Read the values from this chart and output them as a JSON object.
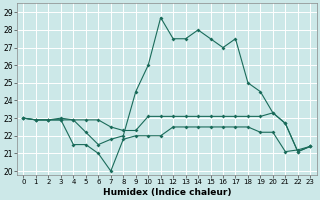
{
  "xlabel": "Humidex (Indice chaleur)",
  "bg_color": "#cce8e8",
  "line_color": "#1a6b5a",
  "grid_color": "#ffffff",
  "xlim": [
    -0.5,
    23.5
  ],
  "ylim": [
    19.8,
    29.5
  ],
  "yticks": [
    20,
    21,
    22,
    23,
    24,
    25,
    26,
    27,
    28,
    29
  ],
  "xticks": [
    0,
    1,
    2,
    3,
    4,
    5,
    6,
    7,
    8,
    9,
    10,
    11,
    12,
    13,
    14,
    15,
    16,
    17,
    18,
    19,
    20,
    21,
    22,
    23
  ],
  "series": [
    [
      23.0,
      22.9,
      22.9,
      22.9,
      21.5,
      21.5,
      21.0,
      20.0,
      21.8,
      22.0,
      22.0,
      22.0,
      22.5,
      22.5,
      22.5,
      22.5,
      22.5,
      22.5,
      22.5,
      22.2,
      22.2,
      21.1,
      21.2,
      21.4
    ],
    [
      23.0,
      22.9,
      22.9,
      22.9,
      22.9,
      22.9,
      22.9,
      22.5,
      22.3,
      22.3,
      23.1,
      23.1,
      23.1,
      23.1,
      23.1,
      23.1,
      23.1,
      23.1,
      23.1,
      23.1,
      23.3,
      22.7,
      21.1,
      21.4
    ],
    [
      23.0,
      22.9,
      22.9,
      23.0,
      22.9,
      22.2,
      21.5,
      21.8,
      22.0,
      24.5,
      26.0,
      28.7,
      27.5,
      27.5,
      28.0,
      27.5,
      27.0,
      27.5,
      25.0,
      24.5,
      23.3,
      22.7,
      21.1,
      21.4
    ]
  ]
}
